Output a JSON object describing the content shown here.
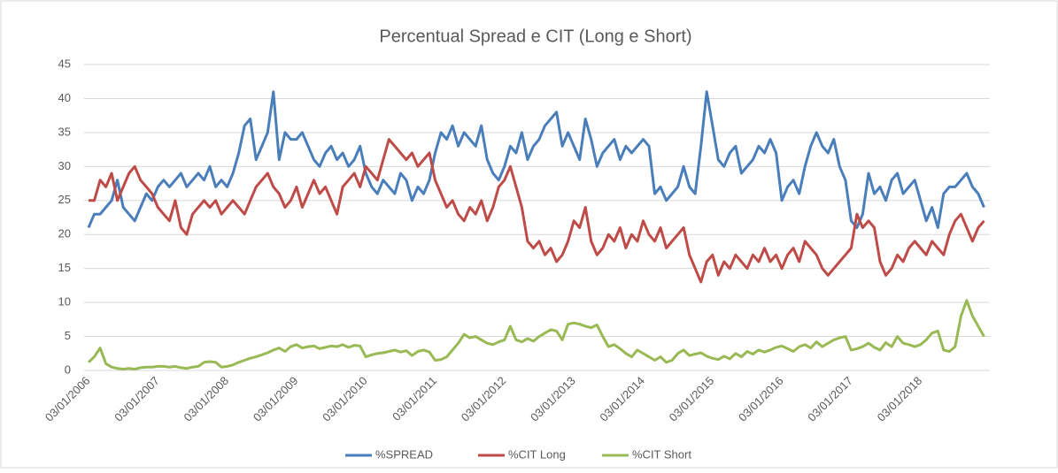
{
  "chart_data": {
    "type": "line",
    "title": "Percentual Spread e CIT (Long e Short)",
    "categories": [
      "03/01/2006",
      null,
      null,
      null,
      null,
      null,
      null,
      null,
      null,
      null,
      null,
      null,
      "03/01/2007",
      null,
      null,
      null,
      null,
      null,
      null,
      null,
      null,
      null,
      null,
      null,
      "03/01/2008",
      null,
      null,
      null,
      null,
      null,
      null,
      null,
      null,
      null,
      null,
      null,
      "03/01/2009",
      null,
      null,
      null,
      null,
      null,
      null,
      null,
      null,
      null,
      null,
      null,
      "03/01/2010",
      null,
      null,
      null,
      null,
      null,
      null,
      null,
      null,
      null,
      null,
      null,
      "03/01/2011",
      null,
      null,
      null,
      null,
      null,
      null,
      null,
      null,
      null,
      null,
      null,
      "03/01/2012",
      null,
      null,
      null,
      null,
      null,
      null,
      null,
      null,
      null,
      null,
      null,
      "03/01/2013",
      null,
      null,
      null,
      null,
      null,
      null,
      null,
      null,
      null,
      null,
      null,
      "03/01/2014",
      null,
      null,
      null,
      null,
      null,
      null,
      null,
      null,
      null,
      null,
      null,
      "03/01/2015",
      null,
      null,
      null,
      null,
      null,
      null,
      null,
      null,
      null,
      null,
      null,
      "03/01/2016",
      null,
      null,
      null,
      null,
      null,
      null,
      null,
      null,
      null,
      null,
      null,
      "03/01/2017",
      null,
      null,
      null,
      null,
      null,
      null,
      null,
      null,
      null,
      null,
      null,
      "03/01/2018",
      null,
      null,
      null,
      null,
      null,
      null,
      null,
      null,
      null,
      null,
      null
    ],
    "series": [
      {
        "name": "%SPREAD",
        "color": "#4a7ebb",
        "values": [
          21,
          23,
          23,
          24,
          25,
          28,
          24,
          23,
          22,
          24,
          26,
          25,
          27,
          28,
          27,
          28,
          29,
          27,
          28,
          29,
          28,
          30,
          27,
          28,
          27,
          29,
          32,
          36,
          37,
          31,
          33,
          35,
          41,
          31,
          35,
          34,
          34,
          35,
          33,
          31,
          30,
          32,
          33,
          31,
          32,
          30,
          31,
          33,
          29,
          27,
          26,
          28,
          27,
          26,
          29,
          28,
          25,
          27,
          26,
          28,
          32,
          35,
          34,
          36,
          33,
          35,
          34,
          33,
          36,
          31,
          29,
          28,
          30,
          33,
          32,
          35,
          31,
          33,
          34,
          36,
          37,
          38,
          33,
          35,
          33,
          31,
          37,
          34,
          30,
          32,
          33,
          34,
          31,
          33,
          32,
          33,
          34,
          33,
          26,
          27,
          25,
          26,
          27,
          30,
          27,
          26,
          33,
          41,
          36,
          31,
          30,
          32,
          33,
          29,
          30,
          31,
          33,
          32,
          34,
          32,
          25,
          27,
          28,
          26,
          30,
          33,
          35,
          33,
          32,
          34,
          30,
          28,
          22,
          21,
          23,
          29,
          26,
          27,
          25,
          28,
          29,
          26,
          27,
          28,
          25,
          22,
          24,
          21,
          26,
          27,
          27,
          28,
          29,
          27,
          26,
          24
        ]
      },
      {
        "name": "%CIT Long",
        "color": "#be4b48",
        "values": [
          25,
          25,
          28,
          27,
          29,
          25,
          27,
          29,
          30,
          28,
          27,
          26,
          24,
          23,
          22,
          25,
          21,
          20,
          23,
          24,
          25,
          24,
          25,
          23,
          24,
          25,
          24,
          23,
          25,
          27,
          28,
          29,
          27,
          26,
          24,
          25,
          27,
          24,
          26,
          28,
          26,
          27,
          25,
          23,
          27,
          28,
          29,
          27,
          30,
          29,
          28,
          31,
          34,
          33,
          32,
          31,
          32,
          30,
          31,
          32,
          28,
          26,
          24,
          25,
          23,
          22,
          24,
          23,
          25,
          22,
          24,
          27,
          28,
          30,
          27,
          24,
          19,
          18,
          19,
          17,
          18,
          16,
          17,
          19,
          22,
          21,
          24,
          19,
          17,
          18,
          20,
          19,
          21,
          18,
          20,
          19,
          22,
          20,
          19,
          21,
          18,
          19,
          20,
          21,
          17,
          15,
          13,
          16,
          17,
          14,
          16,
          15,
          17,
          16,
          15,
          17,
          16,
          18,
          16,
          17,
          15,
          17,
          18,
          16,
          19,
          18,
          17,
          15,
          14,
          15,
          16,
          17,
          18,
          23,
          21,
          22,
          21,
          16,
          14,
          15,
          17,
          16,
          18,
          19,
          18,
          17,
          19,
          18,
          17,
          20,
          22,
          23,
          21,
          19,
          21,
          22
        ]
      },
      {
        "name": "%CIT Short",
        "color": "#98b954",
        "values": [
          1.2,
          2,
          3.3,
          1,
          0.5,
          0.3,
          0.2,
          0.3,
          0.2,
          0.4,
          0.5,
          0.5,
          0.6,
          0.6,
          0.5,
          0.6,
          0.4,
          0.3,
          0.5,
          0.6,
          1.2,
          1.3,
          1.2,
          0.5,
          0.6,
          0.8,
          1.2,
          1.5,
          1.8,
          2,
          2.3,
          2.6,
          3,
          3.3,
          2.8,
          3.5,
          3.8,
          3.3,
          3.5,
          3.6,
          3.2,
          3.4,
          3.6,
          3.5,
          3.8,
          3.4,
          3.7,
          3.6,
          2,
          2.3,
          2.5,
          2.6,
          2.8,
          3,
          2.7,
          2.9,
          2.2,
          2.8,
          3,
          2.7,
          1.5,
          1.6,
          2,
          3,
          4,
          5.3,
          4.8,
          5,
          4.5,
          4,
          3.8,
          4.2,
          4.5,
          6.5,
          4.5,
          4.2,
          4.7,
          4.3,
          5,
          5.5,
          6,
          5.8,
          4.5,
          6.8,
          7,
          6.8,
          6.5,
          6.3,
          6.7,
          5,
          3.5,
          3.8,
          3.2,
          2.5,
          2,
          3,
          2.5,
          2,
          1.5,
          2,
          1.2,
          1.5,
          2.5,
          3,
          2.2,
          2.4,
          2.6,
          2.1,
          1.8,
          1.6,
          2.1,
          1.7,
          2.5,
          2,
          2.8,
          2.4,
          3,
          2.7,
          3,
          3.4,
          3.6,
          3.2,
          2.8,
          3.5,
          3.8,
          3.3,
          4.2,
          3.5,
          4,
          4.5,
          4.8,
          5,
          3,
          3.2,
          3.5,
          4,
          3.4,
          3,
          4.1,
          3.5,
          5,
          4,
          3.8,
          3.5,
          3.8,
          4.5,
          5.5,
          5.8,
          3,
          2.8,
          3.5,
          8,
          10.3,
          8,
          6.5,
          5
        ]
      }
    ],
    "ylim": [
      0,
      45
    ],
    "yticks": [
      0,
      5,
      10,
      15,
      20,
      25,
      30,
      35,
      40,
      45
    ],
    "grid": true,
    "legend": "bottom"
  }
}
